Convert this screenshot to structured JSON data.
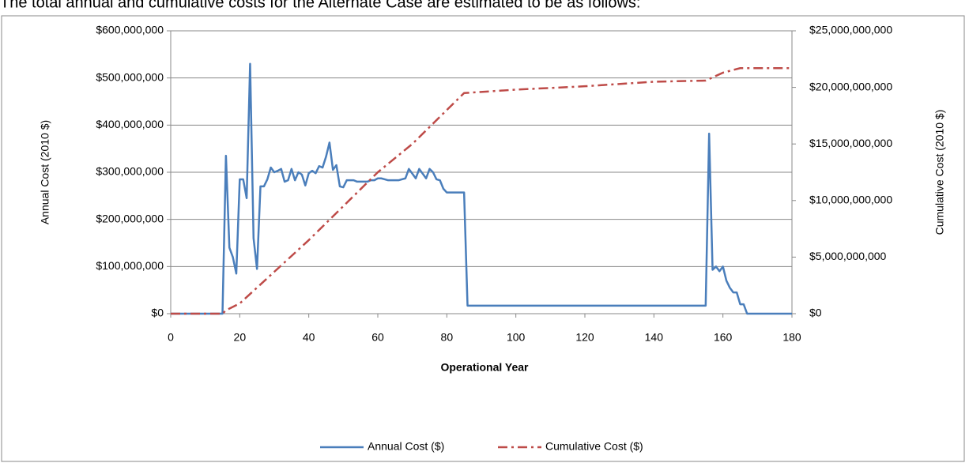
{
  "caption": "The total annual and cumulative costs for the Alternate Case are estimated to be as follows:",
  "chart_data": {
    "type": "line",
    "xlabel": "Operational Year",
    "ylabel": "Annual Cost (2010 $)",
    "y2label": "Cumulative Cost (2010 $)",
    "xlim": [
      0,
      180
    ],
    "xticks": [
      0,
      20,
      40,
      60,
      80,
      100,
      120,
      140,
      160,
      180
    ],
    "ylim": [
      0,
      600000000
    ],
    "yticks": [
      {
        "value": 0,
        "label": "$0"
      },
      {
        "value": 100000000,
        "label": "$100,000,000"
      },
      {
        "value": 200000000,
        "label": "$200,000,000"
      },
      {
        "value": 300000000,
        "label": "$300,000,000"
      },
      {
        "value": 400000000,
        "label": "$400,000,000"
      },
      {
        "value": 500000000,
        "label": "$500,000,000"
      },
      {
        "value": 600000000,
        "label": "$600,000,000"
      }
    ],
    "y2lim": [
      0,
      25000000000
    ],
    "y2ticks": [
      {
        "value": 0,
        "label": "$0"
      },
      {
        "value": 5000000000,
        "label": "$5,000,000,000"
      },
      {
        "value": 10000000000,
        "label": "$10,000,000,000"
      },
      {
        "value": 15000000000,
        "label": "$15,000,000,000"
      },
      {
        "value": 20000000000,
        "label": "$20,000,000,000"
      },
      {
        "value": 25000000000,
        "label": "$25,000,000,000"
      }
    ],
    "grid": true,
    "legend": "bottom",
    "series": [
      {
        "name": "Annual Cost ($)",
        "color": "#4a7ebb",
        "style": "solid",
        "x": [
          0,
          15,
          16,
          17,
          18,
          19,
          20,
          21,
          22,
          23,
          24,
          25,
          26,
          27,
          28,
          29,
          30,
          31,
          32,
          33,
          34,
          35,
          36,
          37,
          38,
          39,
          40,
          41,
          42,
          43,
          44,
          45,
          46,
          47,
          48,
          49,
          50,
          51,
          52,
          53,
          54,
          55,
          56,
          57,
          58,
          59,
          60,
          61,
          62,
          63,
          64,
          65,
          66,
          67,
          68,
          69,
          70,
          71,
          72,
          73,
          74,
          75,
          76,
          77,
          78,
          79,
          80,
          81,
          82,
          83,
          84,
          85,
          86,
          155,
          156,
          157,
          158,
          159,
          160,
          161,
          162,
          163,
          164,
          165,
          166,
          167,
          180
        ],
        "values": [
          0,
          0,
          335000000,
          140000000,
          120000000,
          85000000,
          285000000,
          285000000,
          245000000,
          530000000,
          160000000,
          95000000,
          270000000,
          270000000,
          285000000,
          310000000,
          300000000,
          303000000,
          307000000,
          280000000,
          283000000,
          307000000,
          283000000,
          300000000,
          295000000,
          272000000,
          298000000,
          303000000,
          298000000,
          313000000,
          310000000,
          333000000,
          363000000,
          305000000,
          315000000,
          270000000,
          268000000,
          283000000,
          283000000,
          283000000,
          280000000,
          280000000,
          280000000,
          280000000,
          283000000,
          283000000,
          287000000,
          287000000,
          285000000,
          283000000,
          283000000,
          283000000,
          283000000,
          285000000,
          287000000,
          307000000,
          297000000,
          287000000,
          307000000,
          297000000,
          287000000,
          307000000,
          300000000,
          285000000,
          283000000,
          265000000,
          257000000,
          257000000,
          257000000,
          257000000,
          257000000,
          257000000,
          17000000,
          17000000,
          382000000,
          93000000,
          100000000,
          90000000,
          100000000,
          70000000,
          55000000,
          45000000,
          45000000,
          20000000,
          20000000,
          0,
          0
        ]
      },
      {
        "name": "Cumulative Cost ($)",
        "color": "#be4b48",
        "style": "dashdot",
        "axis": "y2",
        "x": [
          0,
          15,
          16,
          20,
          25,
          30,
          40,
          50,
          60,
          70,
          80,
          85,
          100,
          120,
          140,
          155,
          160,
          165,
          180
        ],
        "values": [
          0,
          0,
          300000000,
          900000000,
          2300000000,
          3700000000,
          6500000000,
          9500000000,
          12500000000,
          15000000000,
          18000000000,
          19500000000,
          19800000000,
          20100000000,
          20500000000,
          20600000000,
          21300000000,
          21700000000,
          21700000000
        ]
      }
    ]
  }
}
